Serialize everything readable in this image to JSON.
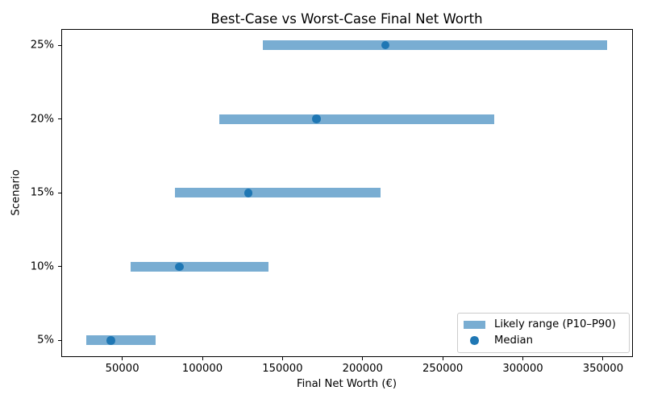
{
  "title": "Best-Case vs Worst-Case Final Net Worth",
  "xlabel": "Final Net Worth (€)",
  "ylabel": "Scenario",
  "legend": {
    "range_label": "Likely range (P10–P90)",
    "median_label": "Median"
  },
  "colors": {
    "bar_fill": "rgba(31,119,180,0.6)",
    "median_dot": "#1f77b4",
    "legend_border": "#cccccc"
  },
  "chart_data": {
    "type": "bar",
    "orientation": "horizontal_range",
    "title": "Best-Case vs Worst-Case Final Net Worth",
    "xlabel": "Final Net Worth (€)",
    "ylabel": "Scenario",
    "categories": [
      "5%",
      "10%",
      "15%",
      "20%",
      "25%"
    ],
    "series": [
      {
        "name": "P10",
        "values": [
          27700,
          55300,
          83000,
          110600,
          137700
        ]
      },
      {
        "name": "Median",
        "values": [
          43000,
          85700,
          128700,
          171200,
          214200
        ]
      },
      {
        "name": "P90",
        "values": [
          70900,
          141300,
          211400,
          282100,
          352500
        ]
      }
    ],
    "xticks": [
      50000,
      100000,
      150000,
      200000,
      250000,
      300000,
      350000
    ],
    "xlim": [
      11700,
      368400
    ],
    "ylim": [
      -0.22,
      4.22
    ],
    "grid": false,
    "legend_position": "lower right",
    "legend_entries": [
      "Likely range (P10–P90)",
      "Median"
    ]
  }
}
